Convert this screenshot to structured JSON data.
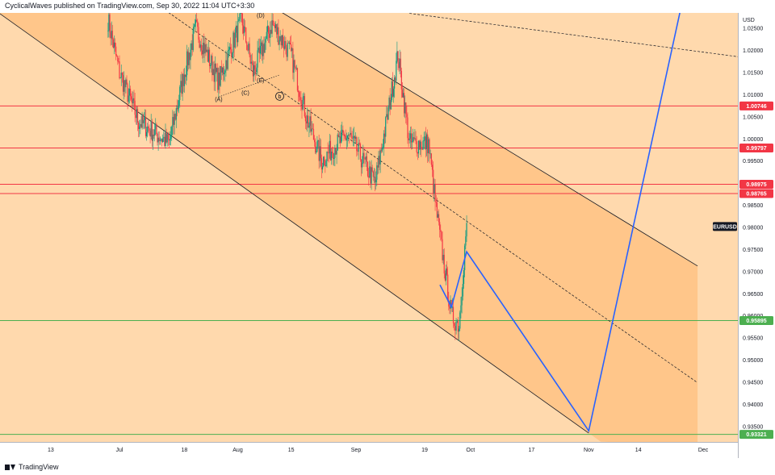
{
  "header": {
    "author": "CyclicalWaves",
    "published_text": "published on TradingView.com,",
    "timestamp": "Sep 30, 2022 11:04 UTC+3:30"
  },
  "footer": {
    "brand": "TradingView"
  },
  "chart_data": {
    "type": "candlestick",
    "symbol": "EURUSD",
    "currency": "USD",
    "last_price": 0.9802,
    "x_ticks": [
      "13",
      "Jul",
      "18",
      "Aug",
      "15",
      "Sep",
      "19",
      "Oct",
      "17",
      "Nov",
      "14",
      "Dec"
    ],
    "y_ticks": [
      "1.02500",
      "1.02000",
      "1.01500",
      "1.01000",
      "1.00500",
      "1.00000",
      "0.99500",
      "0.98500",
      "0.98000",
      "0.97500",
      "0.97000",
      "0.96500",
      "0.96000",
      "0.95500",
      "0.95000",
      "0.94500",
      "0.94000",
      "0.93500"
    ],
    "ylim": [
      0.9315,
      1.0285
    ],
    "colors": {
      "background": "#ffd9ad",
      "channel_fill": "#ffc68a",
      "up_candle": "#089981",
      "down_candle": "#f23645",
      "resistance": "#f23645",
      "support": "#4caf50",
      "projection": "#2962ff",
      "last_price_tag": "#131722"
    },
    "horizontal_levels": [
      {
        "price": 1.00746,
        "label": "1.00746",
        "kind": "resistance"
      },
      {
        "price": 0.99797,
        "label": "0.99797",
        "kind": "resistance"
      },
      {
        "price": 0.98975,
        "label": "0.98975",
        "kind": "resistance"
      },
      {
        "price": 0.98765,
        "label": "0.98765",
        "kind": "resistance"
      },
      {
        "price": 0.95895,
        "label": "0.95895",
        "kind": "support"
      },
      {
        "price": 0.93321,
        "label": "0.93321",
        "kind": "support"
      }
    ],
    "wave_labels": [
      "(D)",
      "(E)",
      "(C)",
      "(A)",
      "b"
    ],
    "candle_anchors": [
      {
        "date": "Jun 28",
        "price": 1.027
      },
      {
        "date": "Jul 1",
        "price": 1.015
      },
      {
        "date": "Jul 6",
        "price": 1.004
      },
      {
        "date": "Jul 14",
        "price": 0.999
      },
      {
        "date": "Jul 18",
        "price": 1.015
      },
      {
        "date": "Jul 21",
        "price": 1.025
      },
      {
        "date": "Jul 27",
        "price": 1.013
      },
      {
        "date": "Aug 2",
        "price": 1.027
      },
      {
        "date": "Aug 5",
        "price": 1.015
      },
      {
        "date": "Aug 10",
        "price": 1.026
      },
      {
        "date": "Aug 15",
        "price": 1.019
      },
      {
        "date": "Aug 19",
        "price": 1.005
      },
      {
        "date": "Aug 23",
        "price": 0.995
      },
      {
        "date": "Aug 26",
        "price": 0.998
      },
      {
        "date": "Aug 30",
        "price": 1.001
      },
      {
        "date": "Sep 6",
        "price": 0.99
      },
      {
        "date": "Sep 9",
        "price": 1.004
      },
      {
        "date": "Sep 12",
        "price": 1.019
      },
      {
        "date": "Sep 15",
        "price": 0.999
      },
      {
        "date": "Sep 20",
        "price": 0.999
      },
      {
        "date": "Sep 22",
        "price": 0.984
      },
      {
        "date": "Sep 26",
        "price": 0.96
      },
      {
        "date": "Sep 28",
        "price": 0.958
      },
      {
        "date": "Sep 30",
        "price": 0.981
      }
    ]
  }
}
